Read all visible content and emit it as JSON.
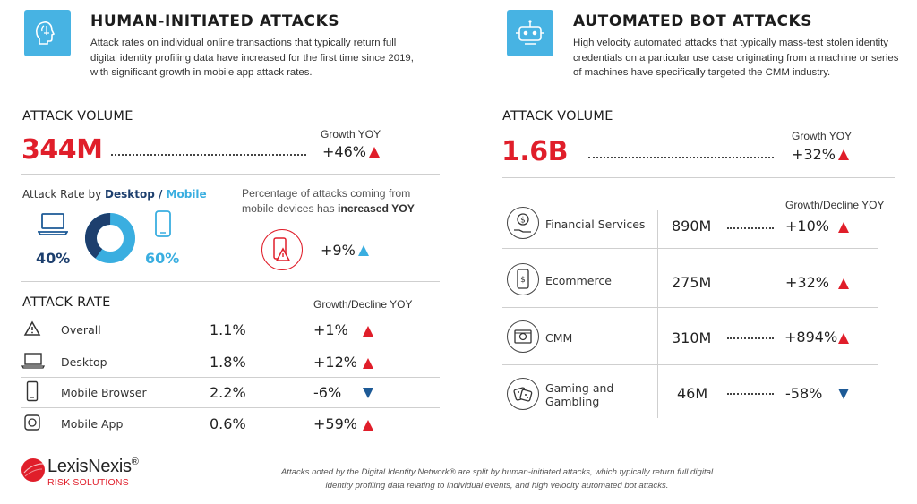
{
  "human": {
    "icon": "human-head-icon",
    "title": "HUMAN-INITIATED ATTACKS",
    "desc_lines": [
      "Attack rates on individual online transactions that typically return full",
      "digital identity profiling data have increased for the first time since 2019,",
      "with significant growth in mobile app attack rates."
    ],
    "volume_heading": "ATTACK VOLUME",
    "volume": "344M",
    "growth_label": "Growth YOY",
    "growth": "+46%",
    "rate_by_prefix": "Attack Rate by ",
    "rate_by_desktop": "Desktop",
    "rate_by_sep": " / ",
    "rate_by_mobile": "Mobile",
    "desktop_pct": "40%",
    "mobile_pct": "60%",
    "desktop_share": 0.4,
    "mobile_share": 0.6,
    "mobile_note_line1": "Percentage of attacks coming from",
    "mobile_note_line2_prefix": "mobile devices has ",
    "mobile_note_line2_bold": "increased YOY",
    "mobile_growth": "+9%",
    "rate_heading": "ATTACK RATE",
    "rate_growth_header": "Growth/Decline YOY",
    "rates": [
      {
        "label": "Overall",
        "icon": "warning-icon",
        "value": "1.1%",
        "change": "+1%",
        "dir": "up"
      },
      {
        "label": "Desktop",
        "icon": "laptop-icon",
        "value": "1.8%",
        "change": "+12%",
        "dir": "up"
      },
      {
        "label": "Mobile Browser",
        "icon": "smartphone-icon",
        "value": "2.2%",
        "change": "-6%",
        "dir": "down"
      },
      {
        "label": "Mobile App",
        "icon": "app-icon",
        "value": "0.6%",
        "change": "+59%",
        "dir": "up"
      }
    ]
  },
  "bot": {
    "icon": "robot-icon",
    "title": "AUTOMATED BOT ATTACKS",
    "desc_lines": [
      "High velocity automated attacks that typically mass-test stolen identity",
      "credentials on a particular use case originating from a machine or series",
      "of machines have specifically targeted the CMM industry."
    ],
    "volume_heading": "ATTACK VOLUME",
    "volume": "1.6B",
    "growth_label": "Growth YOY",
    "growth": "+32%",
    "growth_header": "Growth/Decline YOY",
    "industries": [
      {
        "label_lines": [
          "Financial Services"
        ],
        "icon": "money-hand-icon",
        "value": "890M",
        "change": "+10%",
        "dir": "up"
      },
      {
        "label_lines": [
          "Ecommerce"
        ],
        "icon": "phone-dollar-icon",
        "value": "275M",
        "change": "+32%",
        "dir": "up"
      },
      {
        "label_lines": [
          "CMM"
        ],
        "icon": "media-player-icon",
        "value": "310M",
        "change": "+894%",
        "dir": "up"
      },
      {
        "label_lines": [
          "Gaming and",
          "Gambling"
        ],
        "icon": "dice-icon",
        "value": "46M",
        "change": "-58%",
        "dir": "down"
      }
    ]
  },
  "footer": {
    "brand": "LexisNexis",
    "brand_mark": "®",
    "brand_sub": "RISK SOLUTIONS",
    "note_line1": "Attacks noted by the Digital Identity Network® are split by human-initiated attacks, which typically return full digital",
    "note_line2": "identity profiling data relating to individual events, and high velocity automated bot attacks."
  },
  "colors": {
    "red": "#e01e2a",
    "blue": "#3aaee0",
    "navy": "#1d3f6e",
    "icon_bg": "#47b3e3"
  }
}
